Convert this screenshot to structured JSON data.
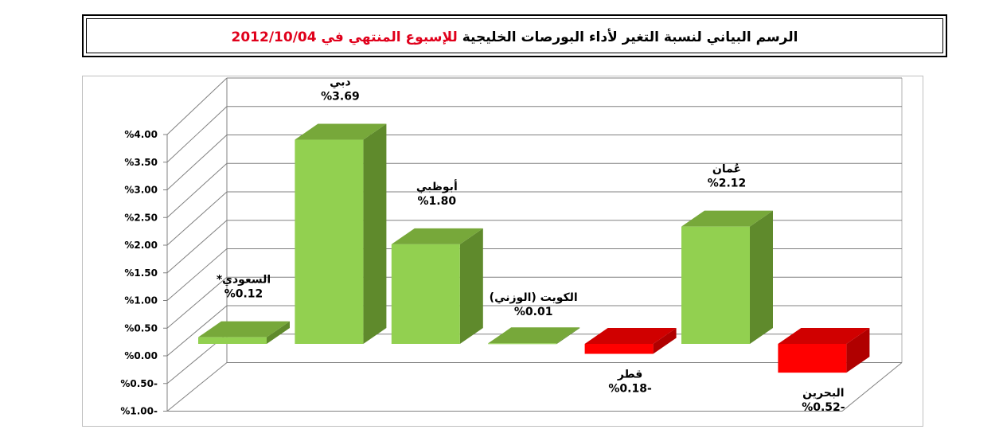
{
  "title": {
    "main": "الرسم البياني لنسبة التغير لأداء البورصات الخليجية",
    "highlight": "للإسبوع المنتهي في 2012/10/04"
  },
  "colors": {
    "positive_front": "#92d050",
    "positive_top": "#77a83a",
    "positive_side": "#5f8a2c",
    "negative_front": "#ff0000",
    "negative_top": "#d00000",
    "negative_side": "#b00000",
    "title_highlight": "#e0001b"
  },
  "chart_data": {
    "type": "bar",
    "style": "3d-column",
    "categories": [
      "السعودي*",
      "دبي",
      "أبوظبي",
      "الكويت (الوزني)",
      "قطر",
      "عُمان",
      "البحرين"
    ],
    "values": [
      0.12,
      3.69,
      1.8,
      0.01,
      -0.18,
      2.12,
      -0.52
    ],
    "data_labels": [
      "%0.12",
      "%3.69",
      "%1.80",
      "%0.01",
      "%0.18-",
      "%2.12",
      "%0.52-"
    ],
    "ylim": [
      -1.0,
      4.0
    ],
    "y_ticks": [
      4.0,
      3.5,
      3.0,
      2.5,
      2.0,
      1.5,
      1.0,
      0.5,
      0.0,
      -0.5,
      -1.0
    ],
    "y_tick_labels": [
      "%4.00",
      "%3.50",
      "%3.00",
      "%2.50",
      "%2.00",
      "%1.50",
      "%1.00",
      "%0.50",
      "%0.00",
      "%0.50-",
      "%1.00-"
    ],
    "grid": true,
    "legend": "none"
  }
}
